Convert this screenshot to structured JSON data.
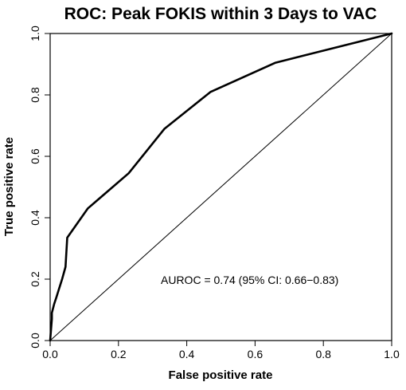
{
  "chart_data": {
    "type": "line",
    "title": "ROC: Peak FOKIS within 3 Days to VAC",
    "xlabel": "False positive rate",
    "ylabel": "True positive rate",
    "xlim": [
      0,
      1
    ],
    "ylim": [
      0,
      1
    ],
    "xticks": [
      "0.0",
      "0.2",
      "0.4",
      "0.6",
      "0.8",
      "1.0"
    ],
    "yticks": [
      "0.0",
      "0.2",
      "0.4",
      "0.6",
      "0.8",
      "1.0"
    ],
    "grid": false,
    "annotation": "AUROC = 0.74 (95% CI: 0.66−0.83)",
    "series": [
      {
        "x": [
          0.0,
          0.005,
          0.005,
          0.012,
          0.018,
          0.025,
          0.035,
          0.045,
          0.05,
          0.11,
          0.23,
          0.335,
          0.47,
          0.66,
          1.0
        ],
        "y": [
          0.0,
          0.07,
          0.09,
          0.12,
          0.14,
          0.165,
          0.2,
          0.24,
          0.335,
          0.43,
          0.545,
          0.69,
          0.81,
          0.905,
          1.0
        ]
      },
      {
        "x": [
          0,
          1
        ],
        "y": [
          0,
          1
        ]
      }
    ],
    "colors": {
      "roc": "#000000",
      "diagonal": "#000000"
    }
  }
}
